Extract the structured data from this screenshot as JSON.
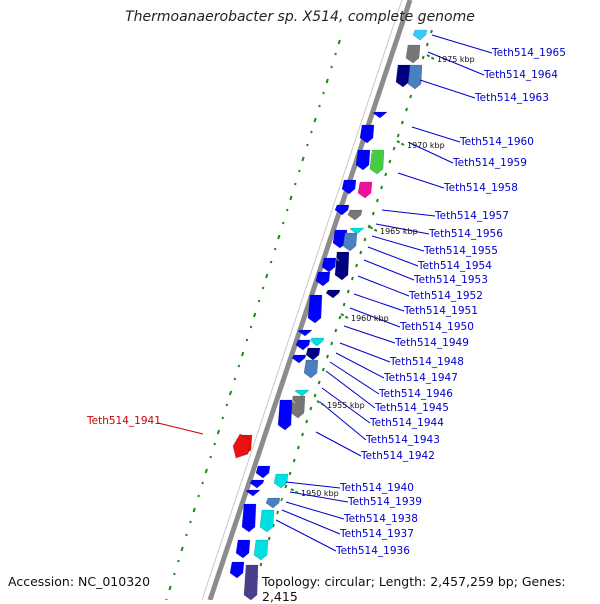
{
  "title": "Thermoanaerobacter sp. X514, complete genome",
  "accession": "Accession: NC_010320",
  "topology": "Topology: circular; Length: 2,457,259 bp; Genes: 2,415",
  "colors": {
    "link_blue": "#0000cc",
    "highlight_red": "#cc0000",
    "backbone": "#888888",
    "tick_green": "#1a8a1a"
  },
  "kbp_ticks": [
    "1975 kbp",
    "1970 kbp",
    "1965 kbp",
    "1960 kbp",
    "1955 kbp",
    "1950 kbp"
  ],
  "gene_labels": [
    "Teth514_1965",
    "Teth514_1964",
    "Teth514_1963",
    "Teth514_1960",
    "Teth514_1959",
    "Teth514_1958",
    "Teth514_1957",
    "Teth514_1956",
    "Teth514_1955",
    "Teth514_1954",
    "Teth514_1953",
    "Teth514_1952",
    "Teth514_1951",
    "Teth514_1950",
    "Teth514_1949",
    "Teth514_1948",
    "Teth514_1947",
    "Teth514_1946",
    "Teth514_1945",
    "Teth514_1944",
    "Teth514_1943",
    "Teth514_1942",
    "Teth514_1940",
    "Teth514_1939",
    "Teth514_1938",
    "Teth514_1937",
    "Teth514_1936"
  ],
  "highlighted_gene": "Teth514_1941"
}
